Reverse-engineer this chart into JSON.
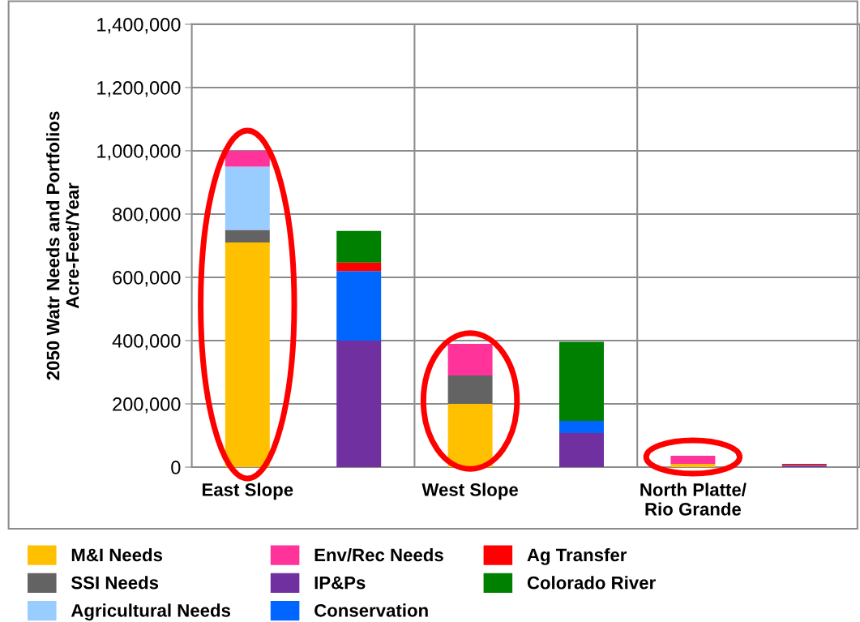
{
  "chart_data": {
    "type": "bar",
    "stacked": true,
    "ylabel": "2050 Watr Needs and Portfolios\nAcre-Feet/Year",
    "categories": [
      "East Slope",
      null,
      "West Slope",
      null,
      "North Platte/\nRio Grande",
      null
    ],
    "series": [
      {
        "name": "M&I Needs",
        "color": "#ffc000",
        "values": [
          710000,
          null,
          200000,
          null,
          10000,
          null
        ]
      },
      {
        "name": "SSI Needs",
        "color": "#636363",
        "values": [
          40000,
          null,
          90000,
          null,
          0,
          null
        ]
      },
      {
        "name": "Agricultural Needs",
        "color": "#99ccff",
        "values": [
          200000,
          null,
          0,
          null,
          0,
          null
        ]
      },
      {
        "name": "Env/Rec Needs",
        "color": "#ff3399",
        "values": [
          50000,
          null,
          100000,
          null,
          26000,
          null
        ]
      },
      {
        "name": "IP&Ps",
        "color": "#7030a0",
        "values": [
          null,
          400000,
          null,
          108000,
          null,
          3000
        ]
      },
      {
        "name": "Conservation",
        "color": "#0066ff",
        "values": [
          null,
          220000,
          null,
          38000,
          null,
          3000
        ]
      },
      {
        "name": "Ag Transfer",
        "color": "#ff0000",
        "values": [
          null,
          27000,
          null,
          0,
          null,
          4000
        ]
      },
      {
        "name": "Colorado River",
        "color": "#008000",
        "values": [
          null,
          100000,
          null,
          250000,
          null,
          0
        ]
      }
    ],
    "ylim": [
      0,
      1400000
    ],
    "yticks": [
      {
        "value": 0,
        "label": "0"
      },
      {
        "value": 200000,
        "label": "200,000"
      },
      {
        "value": 400000,
        "label": "400,000"
      },
      {
        "value": 600000,
        "label": "600,000"
      },
      {
        "value": 800000,
        "label": "800,000"
      },
      {
        "value": 1000000,
        "label": "1,000,000"
      },
      {
        "value": 1200000,
        "label": "1,200,000"
      },
      {
        "value": 1400000,
        "label": "1,400,000"
      }
    ],
    "grid": true,
    "legend": "bottom"
  }
}
